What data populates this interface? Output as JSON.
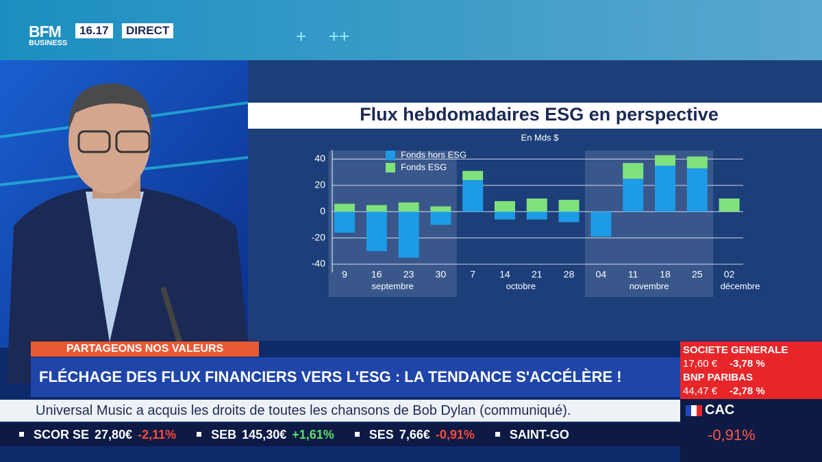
{
  "header": {
    "logo": "BFM",
    "logo_sub": "BUSINESS",
    "time": "16.17",
    "live": "DIRECT"
  },
  "chart_data": {
    "type": "stacked_bar",
    "title": "Flux hebdomadaires ESG en perspective",
    "unit": "En Mds $",
    "categories": [
      "9",
      "16",
      "23",
      "30",
      "7",
      "14",
      "21",
      "28",
      "04",
      "11",
      "18",
      "25",
      "02"
    ],
    "category_months": [
      "septembre",
      "septembre",
      "septembre",
      "septembre",
      "octobre",
      "octobre",
      "octobre",
      "octobre",
      "novembre",
      "novembre",
      "novembre",
      "novembre",
      "décembre"
    ],
    "series": [
      {
        "name": "Fonds hors ESG",
        "color": "#1e9be6",
        "values": [
          -16,
          -30,
          -35,
          -10,
          24,
          -6,
          -6,
          -8,
          -19,
          25,
          35,
          33,
          0
        ]
      },
      {
        "name": "Fonds ESG",
        "color": "#7fe27c",
        "values": [
          6,
          5,
          7,
          4,
          7,
          8,
          10,
          9,
          0,
          12,
          8,
          9,
          10
        ]
      }
    ],
    "ylim": [
      -40,
      47
    ],
    "yticks": [
      -40,
      -20,
      0,
      20,
      40
    ],
    "grid": true,
    "legend": "top-left"
  },
  "banner": {
    "tag": "PARTAGEONS NOS VALEURS",
    "headline": "FLÉCHAGE DES FLUX FINANCIERS VERS L'ESG : LA TENDANCE S'ACCÉLÈRE !"
  },
  "news_ticker": "Universal Music a acquis les droits de toutes les chansons de Bob Dylan (communiqué).",
  "stock_ticker": [
    {
      "name": "SCOR SE",
      "price": "27,80€",
      "change": "-2,11%"
    },
    {
      "name": "SEB",
      "price": "145,30€",
      "change": "+1,61%"
    },
    {
      "name": "SES",
      "price": "7,66€",
      "change": "-0,91%"
    },
    {
      "name": "SAINT-GO"
    }
  ],
  "market_panel": {
    "stocks": [
      {
        "name": "SOCIETE GENERALE",
        "price": "17,60 €",
        "change": "-3,78 %"
      },
      {
        "name": "BNP PARIBAS",
        "price": "44,47 €",
        "change": "-2,78 %"
      }
    ],
    "index": {
      "name": "CAC",
      "change": "-0,91%"
    }
  }
}
